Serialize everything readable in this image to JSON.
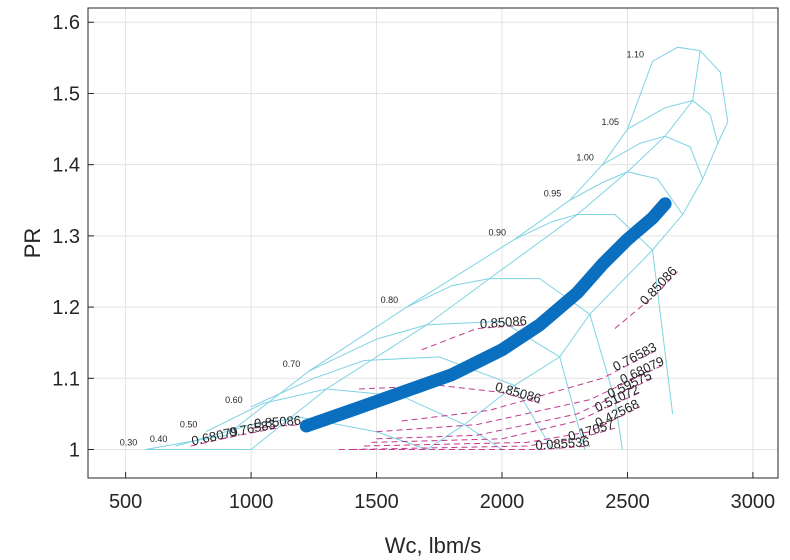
{
  "chart_data": {
    "type": "line",
    "title": "",
    "xlabel": "Wc, lbm/s",
    "ylabel": "PR",
    "xlim": [
      350,
      3100
    ],
    "ylim": [
      0.96,
      1.62
    ],
    "xticks": [
      500,
      1000,
      1500,
      2000,
      2500,
      3000
    ],
    "yticks": [
      1,
      1.1,
      1.2,
      1.3,
      1.4,
      1.5,
      1.6
    ],
    "grid": true,
    "colors": {
      "speed_lines": "#7fd3e3",
      "efficiency_contours": "#c0398e",
      "constant_beta_lines": "#3a4f9a",
      "operating_line": "#0b6fbf"
    },
    "speed_lines": [
      {
        "label": "0.30",
        "points": [
          [
            580,
            1.0
          ],
          [
            1000,
            1.0
          ]
        ]
      },
      {
        "label": "0.40",
        "points": [
          [
            700,
            1.005
          ],
          [
            1000,
            1.035
          ],
          [
            1200,
            1.045
          ],
          [
            1500,
            1.025
          ],
          [
            1700,
            1.0
          ]
        ]
      },
      {
        "label": "0.50",
        "points": [
          [
            820,
            1.025
          ],
          [
            1050,
            1.065
          ],
          [
            1300,
            1.085
          ],
          [
            1600,
            1.075
          ],
          [
            1850,
            1.035
          ],
          [
            2000,
            1.0
          ]
        ]
      },
      {
        "label": "0.60",
        "points": [
          [
            1000,
            1.06
          ],
          [
            1250,
            1.1
          ],
          [
            1450,
            1.125
          ],
          [
            1750,
            1.13
          ],
          [
            2050,
            1.09
          ],
          [
            2200,
            1.0
          ]
        ]
      },
      {
        "label": "0.70",
        "points": [
          [
            1230,
            1.11
          ],
          [
            1500,
            1.155
          ],
          [
            1700,
            1.175
          ],
          [
            2000,
            1.18
          ],
          [
            2230,
            1.13
          ],
          [
            2330,
            1.0
          ]
        ]
      },
      {
        "label": "0.80",
        "points": [
          [
            1620,
            1.2
          ],
          [
            1800,
            1.23
          ],
          [
            1950,
            1.24
          ],
          [
            2150,
            1.24
          ],
          [
            2350,
            1.19
          ],
          [
            2450,
            1.07
          ],
          [
            2480,
            1.0
          ]
        ]
      },
      {
        "label": "0.90",
        "points": [
          [
            2050,
            1.295
          ],
          [
            2200,
            1.32
          ],
          [
            2300,
            1.33
          ],
          [
            2450,
            1.33
          ],
          [
            2600,
            1.28
          ],
          [
            2680,
            1.05
          ]
        ]
      },
      {
        "label": "0.95",
        "points": [
          [
            2270,
            1.35
          ],
          [
            2400,
            1.375
          ],
          [
            2500,
            1.39
          ],
          [
            2620,
            1.38
          ],
          [
            2720,
            1.33
          ]
        ]
      },
      {
        "label": "1.00",
        "points": [
          [
            2400,
            1.4
          ],
          [
            2550,
            1.43
          ],
          [
            2650,
            1.44
          ],
          [
            2750,
            1.425
          ],
          [
            2800,
            1.38
          ]
        ]
      },
      {
        "label": "1.05",
        "points": [
          [
            2500,
            1.45
          ],
          [
            2650,
            1.48
          ],
          [
            2760,
            1.49
          ],
          [
            2830,
            1.47
          ],
          [
            2860,
            1.43
          ]
        ]
      },
      {
        "label": "1.10",
        "points": [
          [
            2600,
            1.545
          ],
          [
            2700,
            1.565
          ],
          [
            2790,
            1.56
          ],
          [
            2870,
            1.53
          ],
          [
            2900,
            1.46
          ]
        ]
      }
    ],
    "efficiency_contours": [
      {
        "label": "0.85086",
        "points": [
          [
            1430,
            1.085
          ],
          [
            1750,
            1.09
          ],
          [
            2000,
            1.08
          ],
          [
            2150,
            1.065
          ]
        ]
      },
      {
        "label": "0.85086",
        "points": [
          [
            1680,
            1.14
          ],
          [
            1900,
            1.17
          ],
          [
            2100,
            1.175
          ]
        ]
      },
      {
        "label": "0.85086",
        "points": [
          [
            2450,
            1.17
          ],
          [
            2620,
            1.22
          ],
          [
            2700,
            1.25
          ]
        ]
      },
      {
        "label": "0.85086",
        "points": [
          [
            1000,
            1.03
          ],
          [
            1200,
            1.035
          ]
        ]
      },
      {
        "label": "0.76583",
        "points": [
          [
            1600,
            1.04
          ],
          [
            1950,
            1.055
          ],
          [
            2400,
            1.1
          ],
          [
            2620,
            1.14
          ]
        ]
      },
      {
        "label": "0.76583",
        "points": [
          [
            880,
            1.015
          ],
          [
            1100,
            1.03
          ]
        ]
      },
      {
        "label": "0.68079",
        "points": [
          [
            1500,
            1.025
          ],
          [
            1900,
            1.035
          ],
          [
            2350,
            1.07
          ],
          [
            2650,
            1.12
          ]
        ]
      },
      {
        "label": "0.68079",
        "points": [
          [
            760,
            1.005
          ],
          [
            950,
            1.02
          ]
        ]
      },
      {
        "label": "0.59575",
        "points": [
          [
            1500,
            1.015
          ],
          [
            1900,
            1.02
          ],
          [
            2300,
            1.05
          ],
          [
            2600,
            1.1
          ]
        ]
      },
      {
        "label": "0.51072",
        "points": [
          [
            1480,
            1.01
          ],
          [
            2000,
            1.015
          ],
          [
            2300,
            1.04
          ],
          [
            2550,
            1.08
          ]
        ]
      },
      {
        "label": "0.42568",
        "points": [
          [
            1450,
            1.005
          ],
          [
            2100,
            1.01
          ],
          [
            2350,
            1.025
          ],
          [
            2550,
            1.06
          ]
        ]
      },
      {
        "label": "0.17057",
        "points": [
          [
            1400,
            1.0
          ],
          [
            2100,
            1.005
          ],
          [
            2300,
            1.015
          ],
          [
            2450,
            1.03
          ]
        ]
      },
      {
        "label": "0.085536",
        "points": [
          [
            1350,
            1.0
          ],
          [
            2150,
            1.0
          ],
          [
            2350,
            1.005
          ]
        ]
      }
    ],
    "constant_beta_lines": [
      {
        "points": [
          [
            580,
            1.0
          ],
          [
            900,
            1.02
          ],
          [
            1230,
            1.11
          ],
          [
            1620,
            1.2
          ],
          [
            2050,
            1.295
          ],
          [
            2270,
            1.35
          ],
          [
            2400,
            1.4
          ],
          [
            2500,
            1.45
          ],
          [
            2600,
            1.545
          ]
        ]
      },
      {
        "points": [
          [
            1000,
            1.0
          ],
          [
            1300,
            1.085
          ],
          [
            1700,
            1.175
          ],
          [
            1950,
            1.24
          ],
          [
            2300,
            1.33
          ],
          [
            2500,
            1.39
          ],
          [
            2650,
            1.44
          ],
          [
            2760,
            1.49
          ],
          [
            2790,
            1.56
          ]
        ]
      },
      {
        "points": [
          [
            1700,
            1.0
          ],
          [
            1850,
            1.035
          ],
          [
            2050,
            1.09
          ],
          [
            2230,
            1.13
          ],
          [
            2350,
            1.19
          ],
          [
            2600,
            1.28
          ],
          [
            2720,
            1.33
          ],
          [
            2800,
            1.38
          ],
          [
            2860,
            1.43
          ],
          [
            2900,
            1.46
          ]
        ]
      }
    ],
    "operating_line": {
      "points": [
        [
          1220,
          1.033
        ],
        [
          1400,
          1.055
        ],
        [
          1600,
          1.08
        ],
        [
          1800,
          1.105
        ],
        [
          2000,
          1.14
        ],
        [
          2150,
          1.175
        ],
        [
          2300,
          1.22
        ],
        [
          2400,
          1.26
        ],
        [
          2500,
          1.295
        ],
        [
          2600,
          1.325
        ],
        [
          2650,
          1.345
        ]
      ]
    }
  }
}
